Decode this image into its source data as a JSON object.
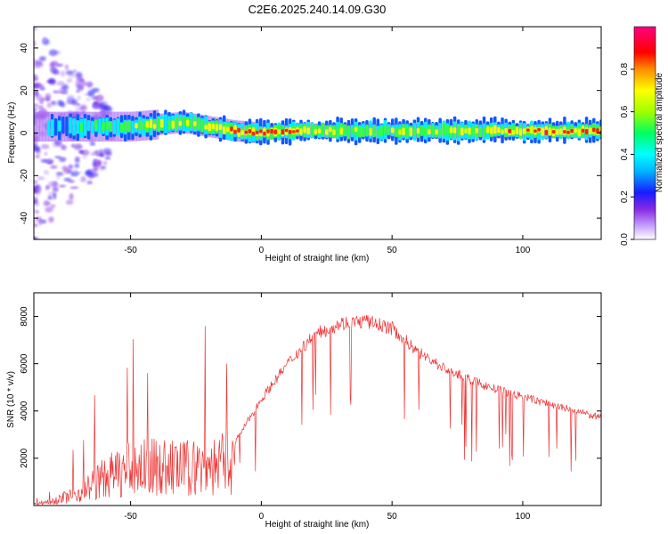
{
  "title": "C2E6.2025.240.14.09.G30",
  "colors": {
    "line": "#ee3333",
    "axis": "#000000",
    "background": "#ffffff"
  },
  "chart_data": [
    {
      "type": "heatmap",
      "xlabel": "Height of straight line (km)",
      "ylabel": "Frequency (Hz)",
      "xlim": [
        -87,
        130
      ],
      "ylim": [
        -50,
        50
      ],
      "x_ticks": [
        -50,
        0,
        50,
        100
      ],
      "y_ticks": [
        -40,
        -20,
        0,
        20,
        40
      ],
      "colorbar": {
        "label": "Normalized spectral amplitude",
        "range": [
          0,
          1
        ],
        "ticks": [
          "0.0",
          "0.2",
          "0.4",
          "0.6",
          "0.8"
        ],
        "tick_values": [
          0,
          0.2,
          0.4,
          0.6,
          0.8
        ]
      },
      "ridge": {
        "x": [
          -80,
          -70,
          -60,
          -50,
          -40,
          -30,
          -20,
          -10,
          0,
          10,
          20,
          40,
          60,
          80,
          100,
          130
        ],
        "freq": [
          3,
          3,
          3,
          3,
          4,
          5,
          3,
          1,
          0,
          1,
          1,
          1,
          1,
          1,
          1,
          1
        ],
        "amplitude": [
          0.3,
          0.4,
          0.45,
          0.5,
          0.55,
          0.6,
          0.65,
          0.8,
          0.9,
          0.85,
          0.6,
          0.5,
          0.55,
          0.6,
          0.75,
          0.8
        ]
      }
    },
    {
      "type": "line",
      "xlabel": "Height of straight line (km)",
      "ylabel": "SNR (10 * v/v)",
      "xlim": [
        -87,
        130
      ],
      "ylim": [
        0,
        9000
      ],
      "x_ticks": [
        -50,
        0,
        50,
        100
      ],
      "y_ticks": [
        2000,
        4000,
        6000,
        8000
      ],
      "envelope": {
        "x": [
          -87,
          -80,
          -70,
          -60,
          -50,
          -40,
          -30,
          -20,
          -10,
          0,
          10,
          20,
          30,
          40,
          50,
          60,
          70,
          80,
          90,
          100,
          110,
          120,
          130
        ],
        "y": [
          100,
          300,
          800,
          1800,
          2400,
          2500,
          2400,
          2600,
          2700,
          4500,
          6000,
          7200,
          7700,
          7800,
          7500,
          6500,
          5800,
          5300,
          4900,
          4600,
          4300,
          4000,
          3700
        ]
      }
    }
  ]
}
